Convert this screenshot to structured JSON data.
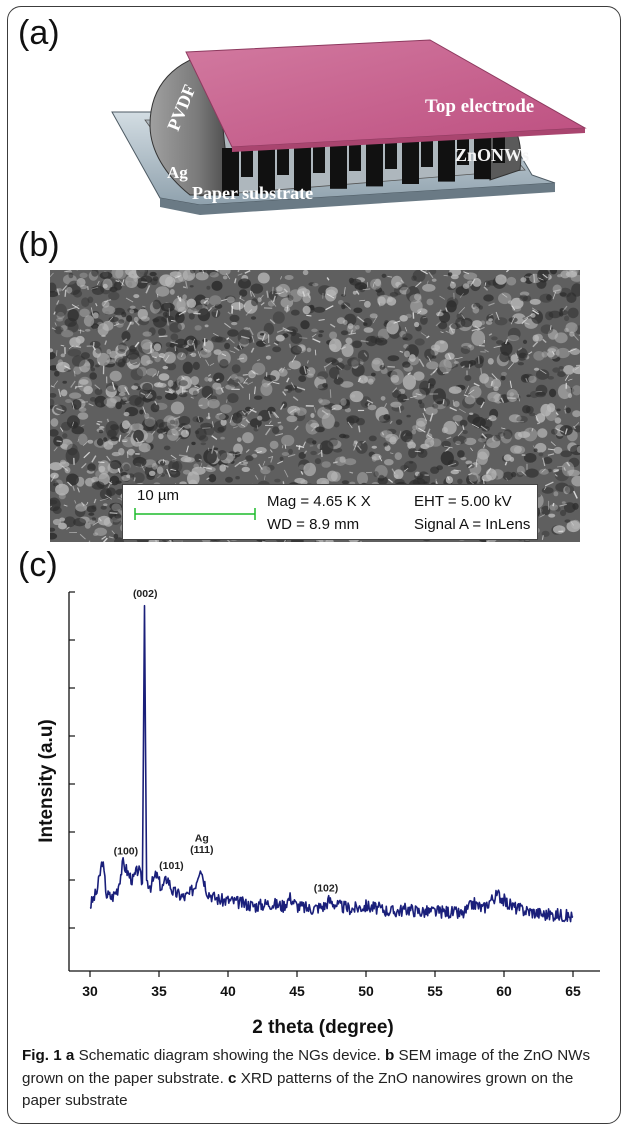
{
  "panels": {
    "a": {
      "label": "(a)"
    },
    "b": {
      "label": "(b)"
    },
    "c": {
      "label": "(c)"
    }
  },
  "diagram": {
    "labels": {
      "top_electrode": "Top electrode",
      "pvdf": "PVDF",
      "zno": "ZnONWs",
      "ag": "Ag",
      "substrate": "Paper substrate"
    },
    "colors": {
      "top_electrode": "#c8648f",
      "nanowires": "#111111",
      "pvdf": "#8a8a8a",
      "substrate": "#b9c7d0"
    }
  },
  "sem": {
    "scale_text": "10 µm",
    "mag": "Mag =  4.65 K X",
    "wd": "WD =  8.9 mm",
    "eht": "EHT =  5.00 kV",
    "signal": "Signal A = InLens",
    "scale_bar_color": "#1dbb2c"
  },
  "chart_data": {
    "type": "line",
    "xlabel": "2 theta (degree)",
    "ylabel": "Intensity (a.u)",
    "xlim": [
      30,
      65
    ],
    "xticks": [
      30,
      35,
      40,
      45,
      50,
      55,
      60,
      65
    ],
    "series": [
      {
        "color": "#1a1f7a",
        "x": [
          30.0,
          30.5,
          30.9,
          31.2,
          31.6,
          32.0,
          32.4,
          32.8,
          33.1,
          33.5,
          33.8,
          33.95,
          34.1,
          34.4,
          34.8,
          35.2,
          35.6,
          36.0,
          36.4,
          36.8,
          37.2,
          37.6,
          38.0,
          38.2,
          38.5,
          39.0,
          39.5,
          40.0,
          41.0,
          42.0,
          43.0,
          44.0,
          44.5,
          45.0,
          46.0,
          47.0,
          47.3,
          48.0,
          49.0,
          50.0,
          51.0,
          52.0,
          53.0,
          54.0,
          55.0,
          56.0,
          57.0,
          57.8,
          58.5,
          59.0,
          59.6,
          60.2,
          61.0,
          62.0,
          63.0,
          64.0,
          65.0
        ],
        "y": [
          0.0,
          0.5,
          1.6,
          0.4,
          0.3,
          0.6,
          1.5,
          1.1,
          0.9,
          1.3,
          0.8,
          10.5,
          0.9,
          0.7,
          1.1,
          0.6,
          1.0,
          0.5,
          0.4,
          0.3,
          0.4,
          0.7,
          1.4,
          1.0,
          0.5,
          0.3,
          0.2,
          0.2,
          0.1,
          0.0,
          0.1,
          0.0,
          0.3,
          0.0,
          -0.1,
          0.0,
          0.2,
          0.0,
          -0.1,
          0.0,
          -0.1,
          -0.2,
          -0.1,
          -0.2,
          -0.2,
          -0.2,
          -0.3,
          0.1,
          -0.1,
          0.2,
          0.4,
          0.1,
          -0.1,
          -0.2,
          -0.3,
          -0.3,
          -0.4
        ]
      }
    ],
    "annotations": [
      {
        "text": "(002)",
        "x": 34.0,
        "y": 10.8
      },
      {
        "text": "(100)",
        "x": 32.6,
        "y": 1.8
      },
      {
        "text": "(101)",
        "x": 35.9,
        "y": 1.3
      },
      {
        "text": "Ag",
        "x": 38.1,
        "y": 2.25
      },
      {
        "text": "(111)",
        "x": 38.1,
        "y": 1.85
      },
      {
        "text": "(102)",
        "x": 47.1,
        "y": 0.5
      }
    ]
  },
  "caption": {
    "fig_label": "Fig. 1",
    "a_letter": "a",
    "a_text": " Schematic diagram showing the NGs device. ",
    "b_letter": "b",
    "b_text": " SEM image of the ZnO NWs grown on the paper substrate. ",
    "c_letter": "c",
    "c_text": " XRD patterns of the ZnO nanowires grown on the paper substrate"
  }
}
